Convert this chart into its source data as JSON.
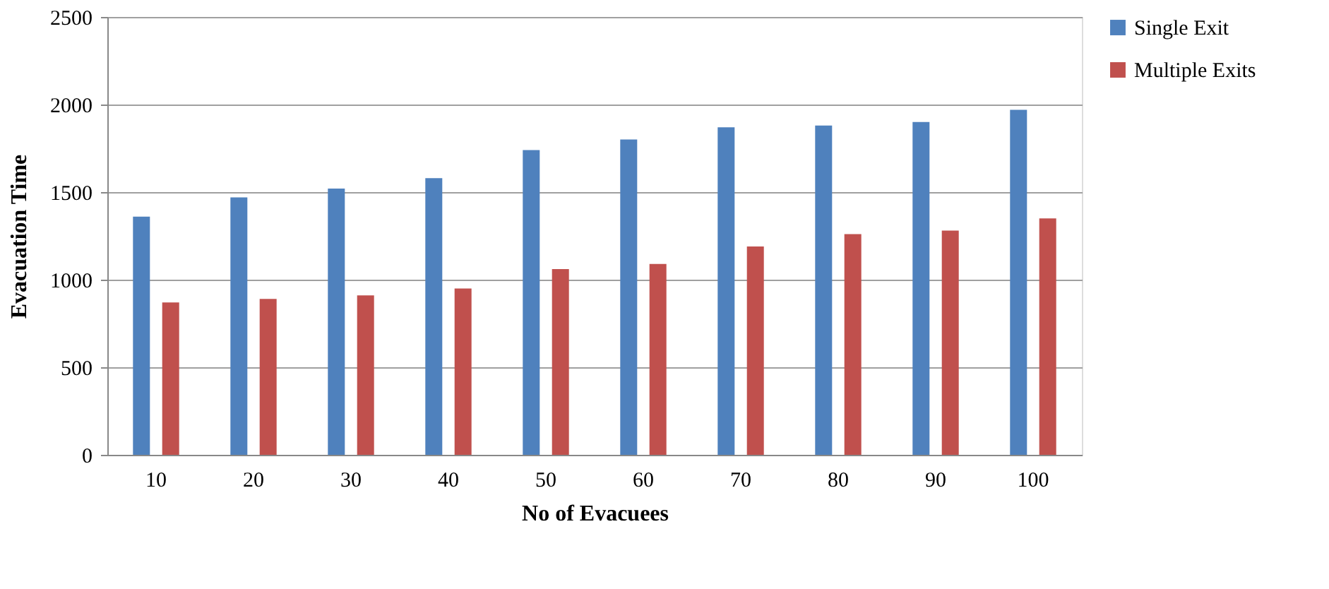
{
  "chart_data": {
    "type": "bar",
    "xlabel": "No of Evacuees",
    "ylabel": "Evacuation Time",
    "categories": [
      "10",
      "20",
      "30",
      "40",
      "50",
      "60",
      "70",
      "80",
      "90",
      "100"
    ],
    "series": [
      {
        "name": "Single Exit",
        "color": "#4f81bd",
        "values": [
          1360,
          1470,
          1520,
          1580,
          1740,
          1800,
          1870,
          1880,
          1900,
          1970
        ]
      },
      {
        "name": "Multiple Exits",
        "color": "#c0504d",
        "values": [
          870,
          890,
          910,
          950,
          1060,
          1090,
          1190,
          1260,
          1280,
          1350
        ]
      }
    ],
    "ylim": [
      0,
      2500
    ],
    "yticks": [
      0,
      500,
      1000,
      1500,
      2000,
      2500
    ],
    "grid": "y",
    "legend": "right"
  }
}
